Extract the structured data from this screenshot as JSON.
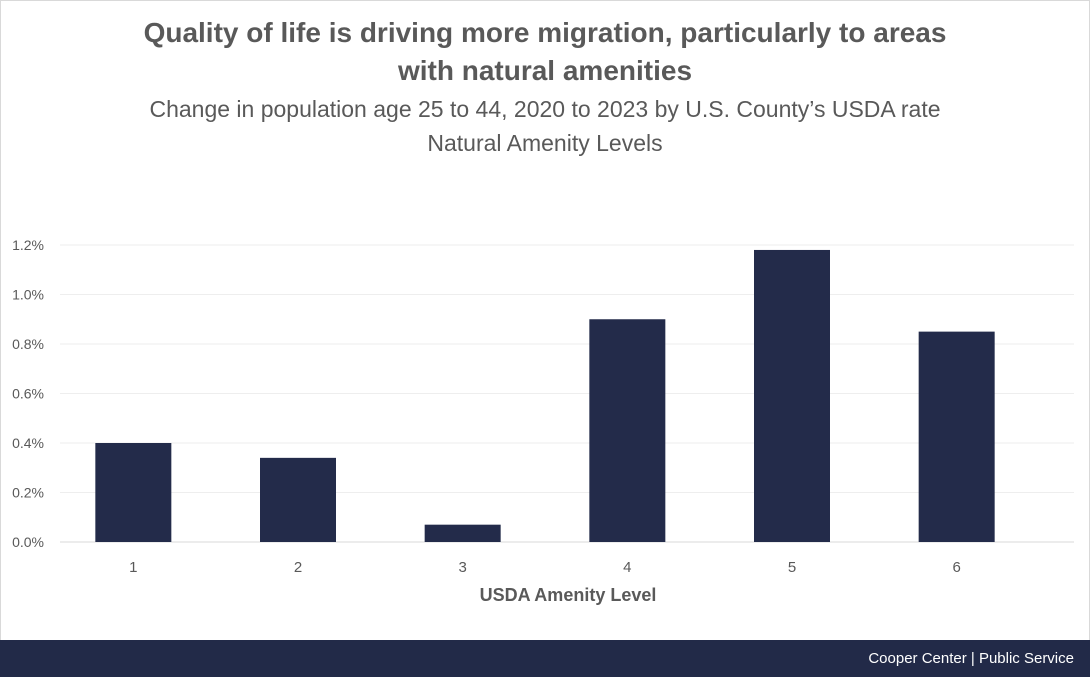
{
  "chart_data": {
    "type": "bar",
    "title_lines": [
      "Quality of life is driving more migration, particularly to areas",
      "with natural amenities"
    ],
    "subtitle_lines": [
      "Change in population age 25 to 44, 2020 to 2023 by U.S. County’s USDA rate",
      "Natural Amenity Levels"
    ],
    "categories": [
      "1",
      "2",
      "3",
      "4",
      "5",
      "6"
    ],
    "values": [
      0.4,
      0.34,
      0.07,
      0.9,
      1.18,
      0.85
    ],
    "xlabel": "USDA Amenity Level",
    "ylabel": "",
    "ylim": [
      0,
      1.2
    ],
    "yticks": [
      "0.0%",
      "0.2%",
      "0.4%",
      "0.6%",
      "0.8%",
      "1.0%",
      "1.2%"
    ],
    "grid": true,
    "colors": {
      "bar": "#232b4a",
      "grid": "#eeeeee",
      "axis": "#d9d9d9",
      "tick_text": "#595959"
    }
  },
  "footer": {
    "text": "Cooper Center | Public Service",
    "color": "#222a48"
  }
}
